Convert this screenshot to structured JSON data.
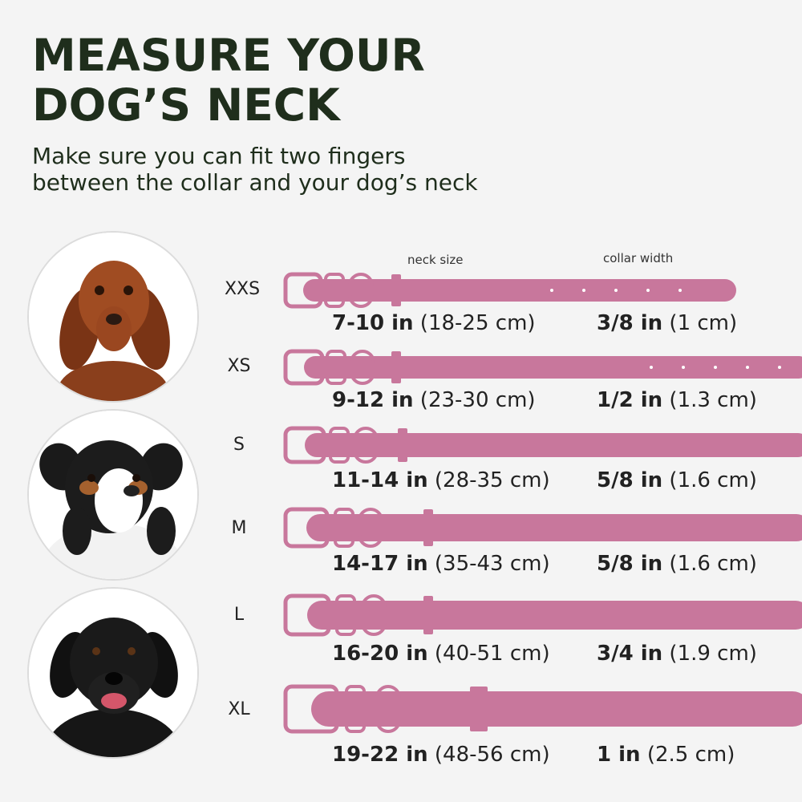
{
  "header": {
    "title_line1": "MEASURE YOUR",
    "title_line2": "DOG’S  NECK",
    "subtitle_line1": "Make sure you can fit two fingers",
    "subtitle_line2": "between the collar and your dog’s neck"
  },
  "columns": {
    "neck": "neck size",
    "width": "collar width"
  },
  "colors": {
    "collar": "#c8779c",
    "title": "#1f2e1c"
  },
  "sizes": [
    {
      "label": "XXS",
      "neck_in": "7-10 in",
      "neck_cm": "(18-25 cm)",
      "width_in": "3/8 in",
      "width_cm": "(1 cm)"
    },
    {
      "label": "XS",
      "neck_in": "9-12 in",
      "neck_cm": "(23-30 cm)",
      "width_in": "1/2 in",
      "width_cm": "(1.3 cm)"
    },
    {
      "label": "S",
      "neck_in": "11-14 in",
      "neck_cm": "(28-35 cm)",
      "width_in": "5/8 in",
      "width_cm": "(1.6 cm)"
    },
    {
      "label": "M",
      "neck_in": "14-17 in",
      "neck_cm": "(35-43 cm)",
      "width_in": "5/8 in",
      "width_cm": "(1.6 cm)"
    },
    {
      "label": "L",
      "neck_in": "16-20 in",
      "neck_cm": "(40-51 cm)",
      "width_in": "3/4 in",
      "width_cm": "(1.9 cm)"
    },
    {
      "label": "XL",
      "neck_in": "19-22 in",
      "neck_cm": "(48-56 cm)",
      "width_in": "1 in",
      "width_cm": "(2.5 cm)"
    }
  ],
  "dogs": [
    {
      "name": "dachshund-photo"
    },
    {
      "name": "australian-shepherd-photo"
    },
    {
      "name": "black-labrador-photo"
    }
  ]
}
